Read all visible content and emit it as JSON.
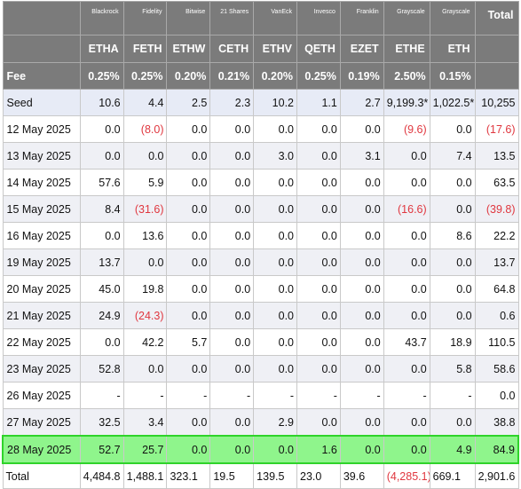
{
  "issuers": [
    "Blackrock",
    "Fidelity",
    "Bitwise",
    "21 Shares",
    "VanEck",
    "Invesco",
    "Franklin",
    "Grayscale",
    "Grayscale"
  ],
  "tickers": [
    "ETHA",
    "FETH",
    "ETHW",
    "CETH",
    "ETHV",
    "QETH",
    "EZET",
    "ETHE",
    "ETH"
  ],
  "total_header": "Total",
  "fee_label": "Fee",
  "fees": [
    "0.25%",
    "0.25%",
    "0.20%",
    "0.21%",
    "0.20%",
    "0.25%",
    "0.19%",
    "2.50%",
    "0.15%"
  ],
  "rows": [
    {
      "label": "Seed",
      "values": [
        "10.6",
        "4.4",
        "2.5",
        "2.3",
        "10.2",
        "1.1",
        "2.7",
        "9,199.3*",
        "1,022.5*",
        "10,255"
      ]
    },
    {
      "label": "12 May 2025",
      "values": [
        "0.0",
        "(8.0)",
        "0.0",
        "0.0",
        "0.0",
        "0.0",
        "0.0",
        "(9.6)",
        "0.0",
        "(17.6)"
      ]
    },
    {
      "label": "13 May 2025",
      "values": [
        "0.0",
        "0.0",
        "0.0",
        "0.0",
        "3.0",
        "0.0",
        "3.1",
        "0.0",
        "7.4",
        "13.5"
      ]
    },
    {
      "label": "14 May 2025",
      "values": [
        "57.6",
        "5.9",
        "0.0",
        "0.0",
        "0.0",
        "0.0",
        "0.0",
        "0.0",
        "0.0",
        "63.5"
      ]
    },
    {
      "label": "15 May 2025",
      "values": [
        "8.4",
        "(31.6)",
        "0.0",
        "0.0",
        "0.0",
        "0.0",
        "0.0",
        "(16.6)",
        "0.0",
        "(39.8)"
      ]
    },
    {
      "label": "16 May 2025",
      "values": [
        "0.0",
        "13.6",
        "0.0",
        "0.0",
        "0.0",
        "0.0",
        "0.0",
        "0.0",
        "8.6",
        "22.2"
      ]
    },
    {
      "label": "19 May 2025",
      "values": [
        "13.7",
        "0.0",
        "0.0",
        "0.0",
        "0.0",
        "0.0",
        "0.0",
        "0.0",
        "0.0",
        "13.7"
      ]
    },
    {
      "label": "20 May 2025",
      "values": [
        "45.0",
        "19.8",
        "0.0",
        "0.0",
        "0.0",
        "0.0",
        "0.0",
        "0.0",
        "0.0",
        "64.8"
      ]
    },
    {
      "label": "21 May 2025",
      "values": [
        "24.9",
        "(24.3)",
        "0.0",
        "0.0",
        "0.0",
        "0.0",
        "0.0",
        "0.0",
        "0.0",
        "0.6"
      ]
    },
    {
      "label": "22 May 2025",
      "values": [
        "0.0",
        "42.2",
        "5.7",
        "0.0",
        "0.0",
        "0.0",
        "0.0",
        "43.7",
        "18.9",
        "110.5"
      ]
    },
    {
      "label": "23 May 2025",
      "values": [
        "52.8",
        "0.0",
        "0.0",
        "0.0",
        "0.0",
        "0.0",
        "0.0",
        "0.0",
        "5.8",
        "58.6"
      ]
    },
    {
      "label": "26 May 2025",
      "values": [
        "-",
        "-",
        "-",
        "-",
        "-",
        "-",
        "-",
        "-",
        "-",
        "0.0"
      ]
    },
    {
      "label": "27 May 2025",
      "values": [
        "32.5",
        "3.4",
        "0.0",
        "0.0",
        "2.9",
        "0.0",
        "0.0",
        "0.0",
        "0.0",
        "38.8"
      ]
    },
    {
      "label": "28 May 2025",
      "values": [
        "52.7",
        "25.7",
        "0.0",
        "0.0",
        "0.0",
        "1.6",
        "0.0",
        "0.0",
        "4.9",
        "84.9"
      ],
      "highlight": true
    }
  ],
  "total_row": {
    "label": "Total",
    "values": [
      "4,484.8",
      "1,488.1",
      "323.1",
      "19.5",
      "139.5",
      "23.0",
      "39.6",
      "(4,285.1)",
      "669.1",
      "2,901.6"
    ]
  },
  "colors": {
    "header_bg": "#7b7b7b",
    "seed_bg": "#e7ebf6",
    "highlight_bg": "#8ff58c",
    "highlight_border": "#2fd32a",
    "negative": "#e0373f"
  }
}
